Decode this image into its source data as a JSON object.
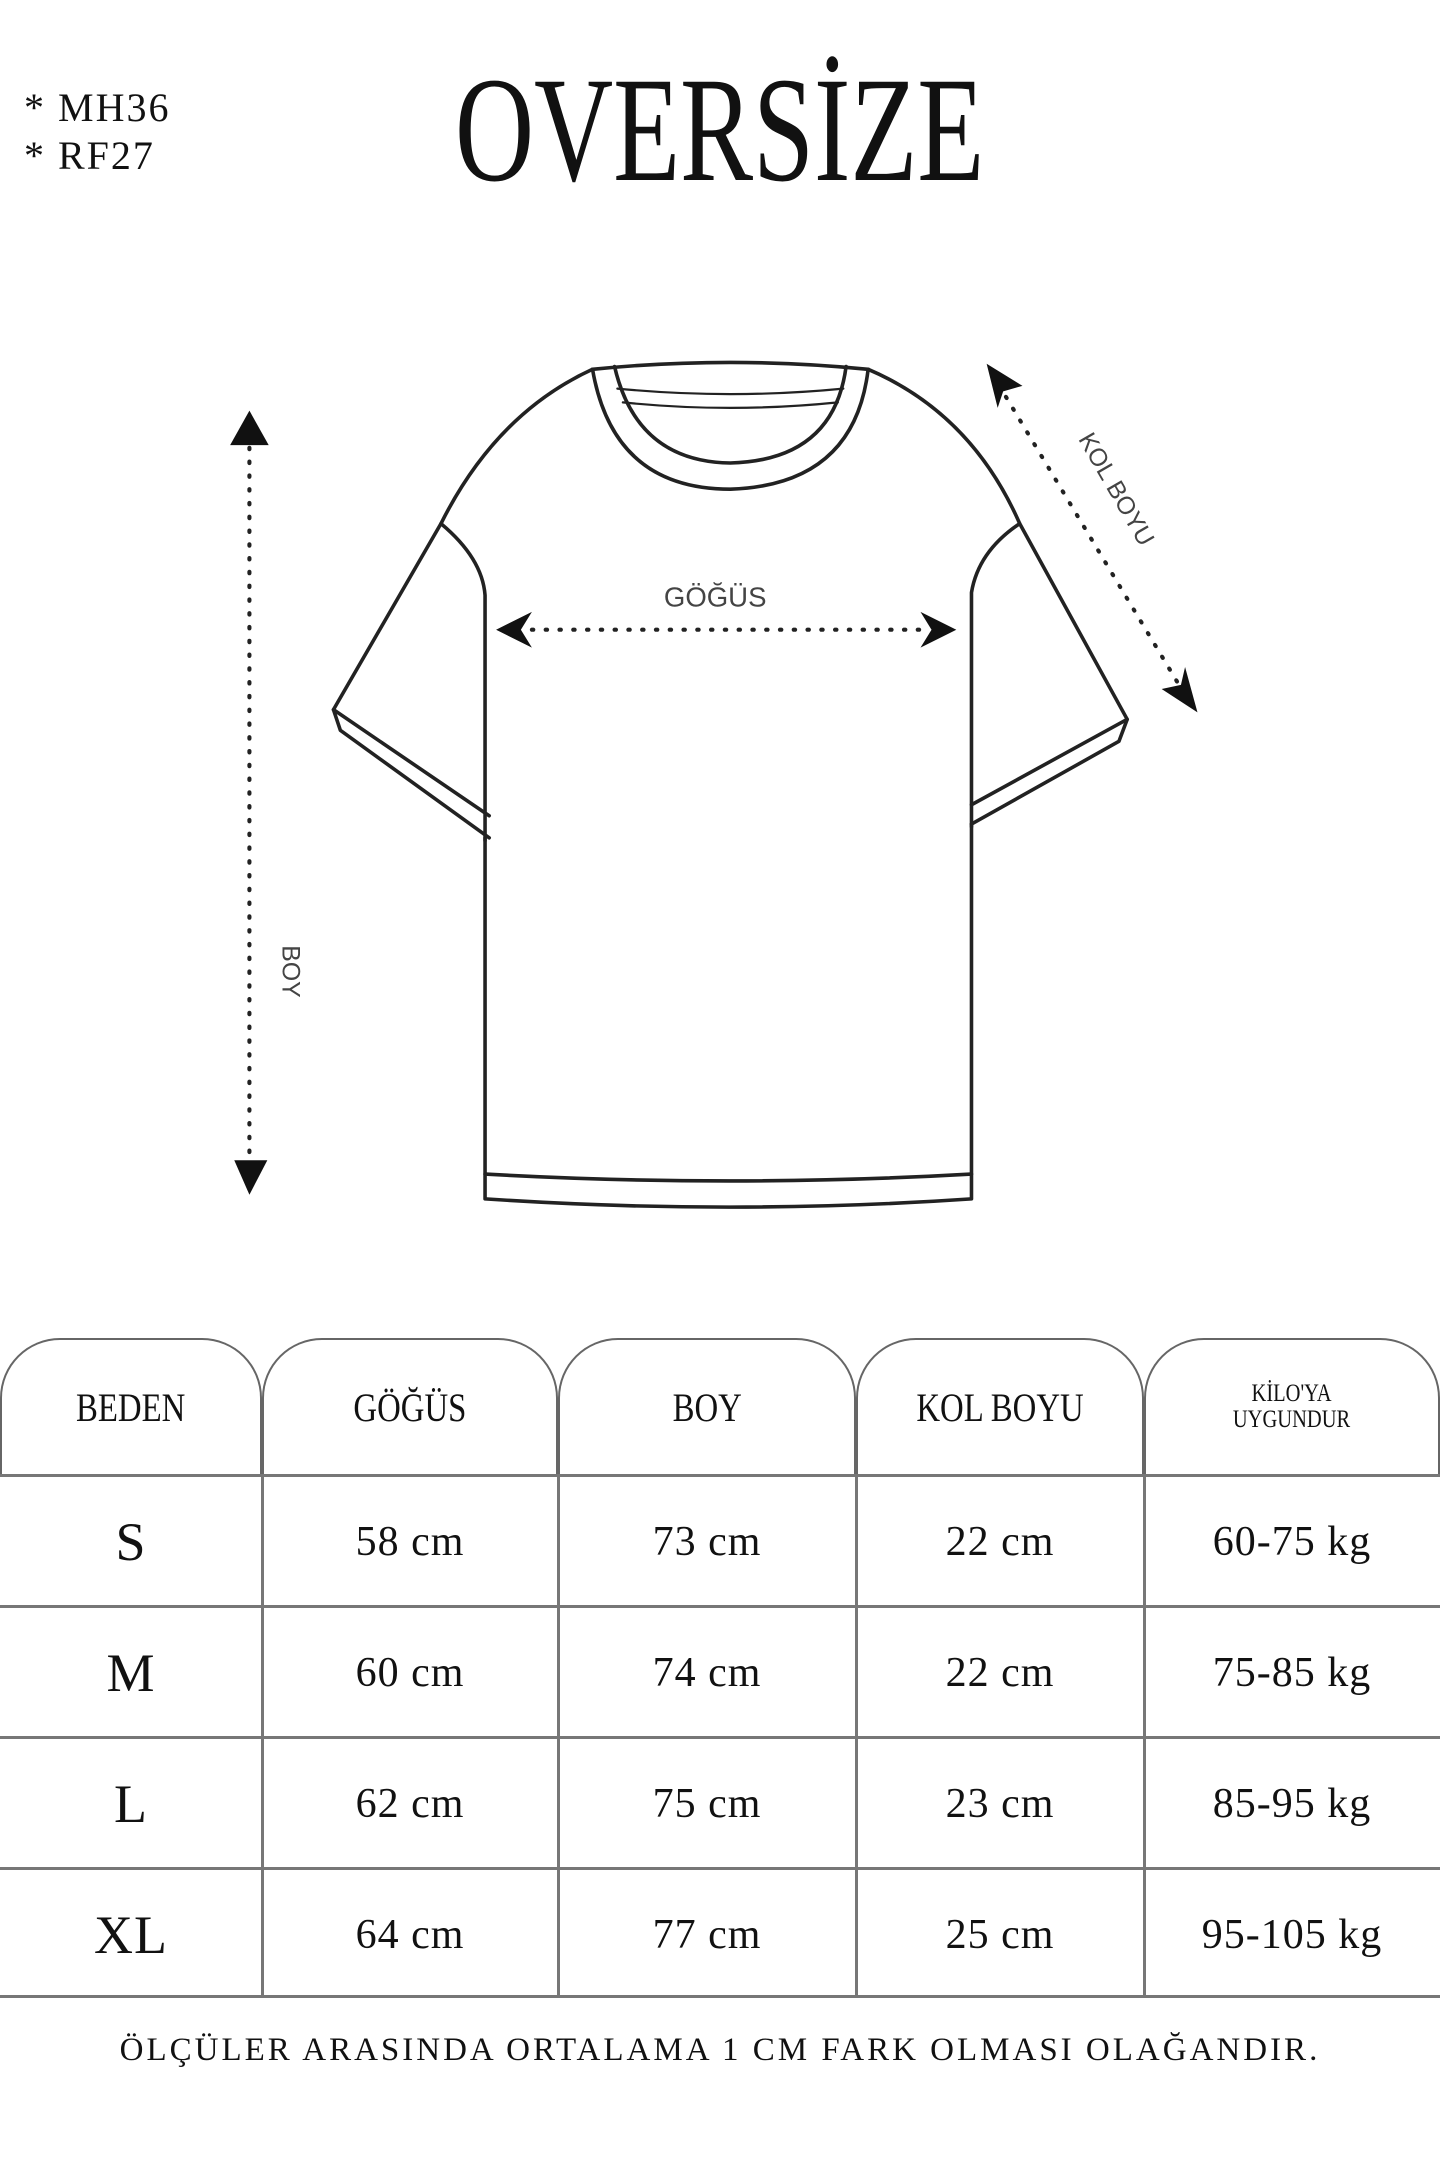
{
  "codes": [
    "* MH36",
    "* RF27"
  ],
  "title": "OVERSİZE",
  "diagram": {
    "chest_label": "GÖĞÜS",
    "length_label": "BOY",
    "sleeve_label": "KOL BOYU"
  },
  "table": {
    "headers": [
      "BEDEN",
      "GÖĞÜS",
      "BOY",
      "KOL BOYU",
      [
        "KİLO'YA",
        "UYGUNDUR"
      ]
    ],
    "rows": [
      [
        "S",
        "58 cm",
        "73 cm",
        "22 cm",
        "60-75 kg"
      ],
      [
        "M",
        "60 cm",
        "74 cm",
        "22 cm",
        "75-85 kg"
      ],
      [
        "L",
        "62 cm",
        "75 cm",
        "23 cm",
        "85-95 kg"
      ],
      [
        "XL",
        "64 cm",
        "77 cm",
        "25 cm",
        "95-105 kg"
      ]
    ]
  },
  "footer": "ÖLÇÜLER ARASINDA ORTALAMA 1 CM FARK OLMASI OLAĞANDIR."
}
